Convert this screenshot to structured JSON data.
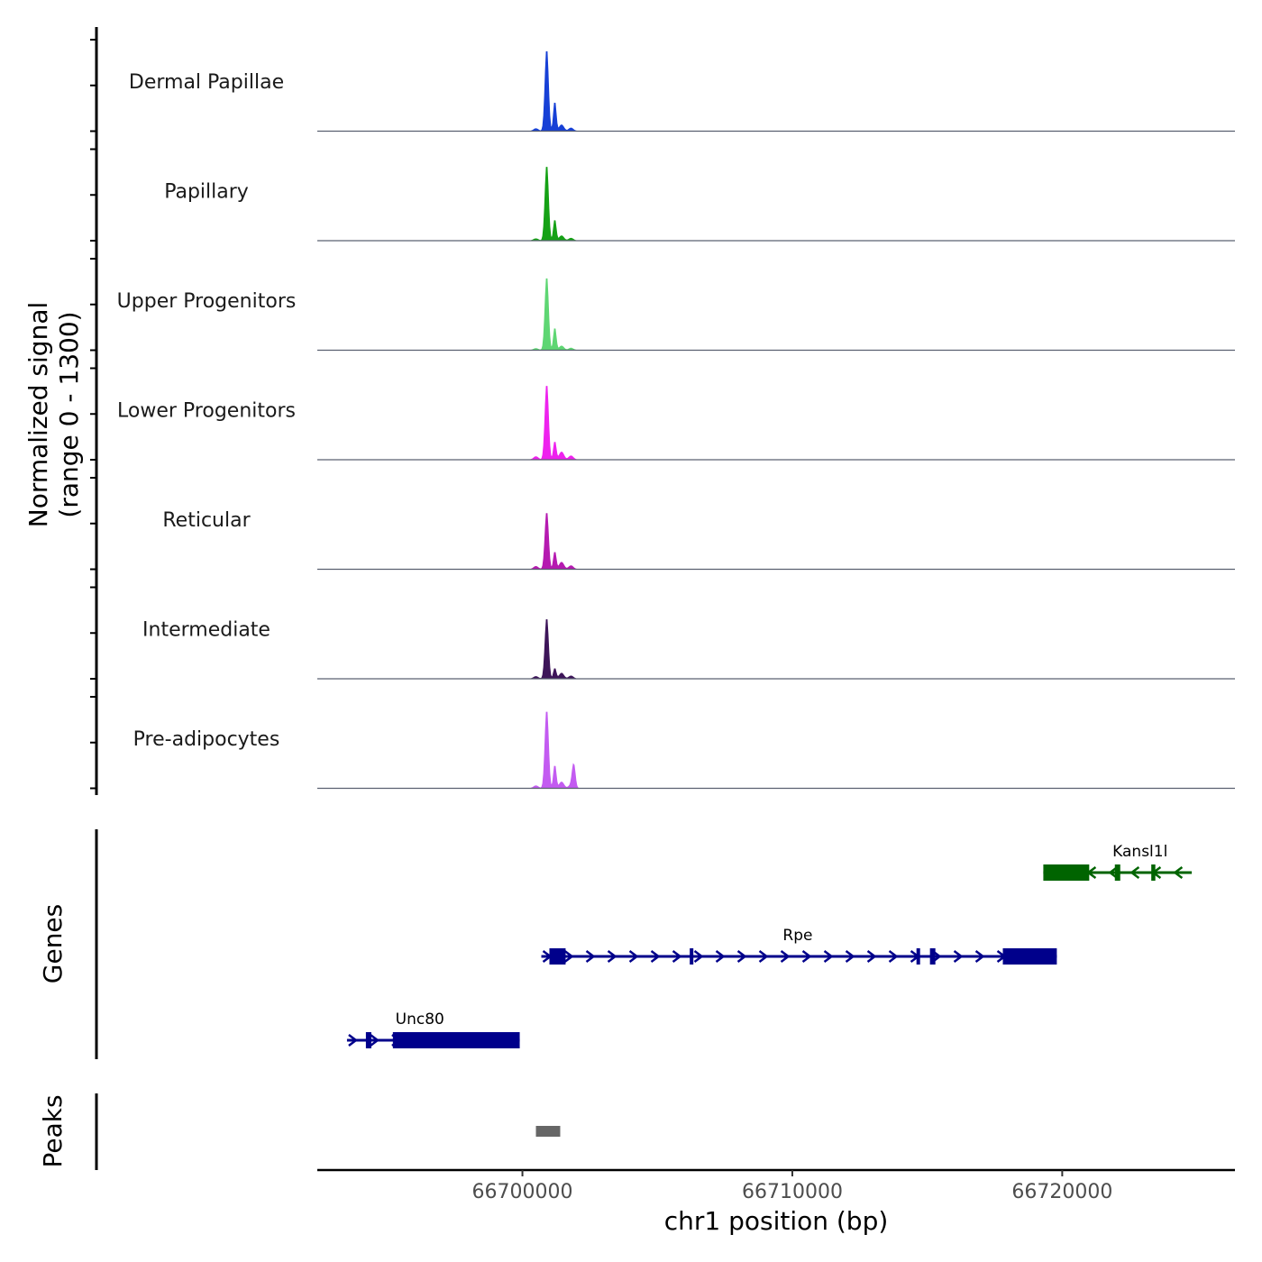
{
  "chart_data": {
    "type": "coverage-track",
    "signal_panel": {
      "ylabel_line1": "Normalized signal",
      "ylabel_line2": "(range 0 - 1300)",
      "ylim": [
        0,
        1300
      ],
      "tracks": [
        {
          "name": "Dermal Papillae",
          "color": "#1740d6",
          "peak_main": 1170,
          "peak_second": 420,
          "shoulder": 90,
          "minor_peak": 0
        },
        {
          "name": "Papillary",
          "color": "#15a115",
          "peak_main": 1080,
          "peak_second": 300,
          "shoulder": 70,
          "minor_peak": 0
        },
        {
          "name": "Upper Progenitors",
          "color": "#5ed673",
          "peak_main": 1050,
          "peak_second": 320,
          "shoulder": 60,
          "minor_peak": 0
        },
        {
          "name": "Lower Progenitors",
          "color": "#ee22ee",
          "peak_main": 1080,
          "peak_second": 260,
          "shoulder": 110,
          "minor_peak": 0
        },
        {
          "name": "Reticular",
          "color": "#b51ab0",
          "peak_main": 820,
          "peak_second": 250,
          "shoulder": 100,
          "minor_peak": 0
        },
        {
          "name": "Intermediate",
          "color": "#3d1559",
          "peak_main": 870,
          "peak_second": 150,
          "shoulder": 80,
          "minor_peak": 0
        },
        {
          "name": "Pre-adipocytes",
          "color": "#c35bf1",
          "peak_main": 1120,
          "peak_second": 330,
          "shoulder": 90,
          "minor_peak": 330
        }
      ]
    },
    "genes_panel": {
      "ylabel": "Genes",
      "genes": [
        {
          "name": "Kansl1l",
          "strand": "-",
          "color": "#006400",
          "start": 66719300,
          "end": 66724800,
          "row": 0,
          "exons": [
            [
              66719300,
              66721000
            ],
            [
              66721950,
              66722150
            ],
            [
              66723300,
              66723450
            ]
          ]
        },
        {
          "name": "Rpe",
          "strand": "+",
          "color": "#00008b",
          "start": 66700700,
          "end": 66719800,
          "row": 1,
          "exons": [
            [
              66701000,
              66701600
            ],
            [
              66706200,
              66706300
            ],
            [
              66714600,
              66714700
            ],
            [
              66715100,
              66715300
            ],
            [
              66717800,
              66719800
            ]
          ]
        },
        {
          "name": "Unc80",
          "strand": "+",
          "color": "#00008b",
          "start": 66693500,
          "end": 66699900,
          "row": 2,
          "exons": [
            [
              66694200,
              66694400
            ],
            [
              66695200,
              66699900
            ]
          ]
        }
      ]
    },
    "peaks_panel": {
      "ylabel": "Peaks",
      "color": "#666666",
      "peaks": [
        [
          66700500,
          66701400
        ]
      ]
    },
    "x_axis": {
      "label": "chr1 position (bp)",
      "range": [
        66692400,
        66726400
      ],
      "ticks": [
        66700000,
        66710000,
        66720000
      ],
      "tick_labels": [
        "66700000",
        "66710000",
        "66720000"
      ]
    }
  }
}
